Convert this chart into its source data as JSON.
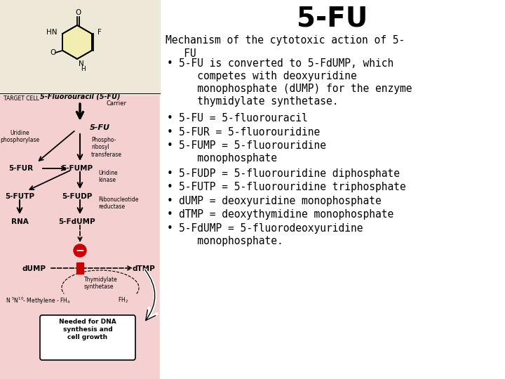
{
  "title": "5-FU",
  "title_fontsize": 28,
  "background_color": "#ffffff",
  "left_panel_color": "#f5d0d0",
  "struct_bg_color": "#ede8d8",
  "header_fontsize": 10.5,
  "bullet_fontsize": 10.5,
  "bullets": [
    "5-FU is converted to 5-FdUMP, which\n    competes with deoxyuridine\n    monophosphate (dUMP) for the enzyme\n    thymidylate synthetase.",
    "5-FU = 5-fluorouracil",
    "5-FUR = 5-fluorouridine",
    "5-FUMP = 5-fluorouridine\n    monophosphate",
    "5-FUDP = 5-fluorouridine diphosphate",
    "5-FUTP = 5-fluorouridine triphosphate",
    "dUMP = deoxyuridine monophosphate",
    "dTMP = deoxythymidine monophosphate",
    "5-FdUMP = 5-fluorodeoxyuridine\n    monophosphate."
  ],
  "panel_split": 228
}
